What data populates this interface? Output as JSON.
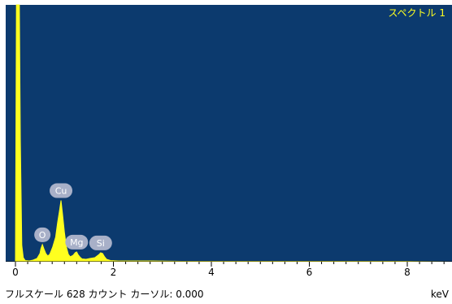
{
  "chart_data": {
    "type": "area",
    "title": "スペクトル 1",
    "xlabel": "keV",
    "ylabel": "",
    "xlim": [
      -0.1,
      8.9
    ],
    "ylim": [
      0,
      628
    ],
    "grid": false,
    "x_ticks": [
      0,
      2,
      4,
      6,
      8
    ],
    "series": [
      {
        "x": [
          0.0,
          0.02,
          0.05,
          0.08,
          0.1,
          0.13,
          0.16,
          0.2,
          0.28,
          0.36,
          0.44,
          0.5,
          0.52,
          0.55,
          0.58,
          0.62,
          0.66,
          0.7,
          0.76,
          0.82,
          0.86,
          0.9,
          0.93,
          0.96,
          1.0,
          1.04,
          1.08,
          1.12,
          1.18,
          1.22,
          1.25,
          1.28,
          1.32,
          1.36,
          1.44,
          1.52,
          1.62,
          1.7,
          1.74,
          1.78,
          1.82,
          1.86,
          1.94,
          2.1,
          2.4,
          2.8,
          3.4,
          4.0,
          5.0,
          6.0,
          7.0,
          8.0,
          8.9
        ],
        "y": [
          0,
          628,
          628,
          628,
          300,
          40,
          10,
          3,
          2,
          4,
          8,
          20,
          32,
          42,
          32,
          20,
          14,
          18,
          36,
          60,
          95,
          125,
          150,
          118,
          72,
          36,
          18,
          12,
          16,
          22,
          24,
          17,
          11,
          7,
          6,
          8,
          10,
          17,
          22,
          20,
          12,
          6,
          3,
          2,
          2,
          2,
          1,
          1,
          1,
          1,
          1,
          1,
          0
        ]
      }
    ],
    "peak_labels": [
      {
        "label": "O",
        "x": 0.55,
        "y": 42
      },
      {
        "label": "Cu",
        "x": 0.93,
        "y": 150
      },
      {
        "label": "Mg",
        "x": 1.25,
        "y": 24
      },
      {
        "label": "Si",
        "x": 1.74,
        "y": 22
      }
    ],
    "colors": {
      "background": "#0c3a6e",
      "spectrum": "#ffff1f",
      "title": "#ffff1f",
      "badge": "#a8b0c8",
      "axis_band": "#ffffff"
    }
  },
  "footer": {
    "status_text": "フルスケール 628 カウント カーソル: 0.000",
    "unit": "keV"
  }
}
